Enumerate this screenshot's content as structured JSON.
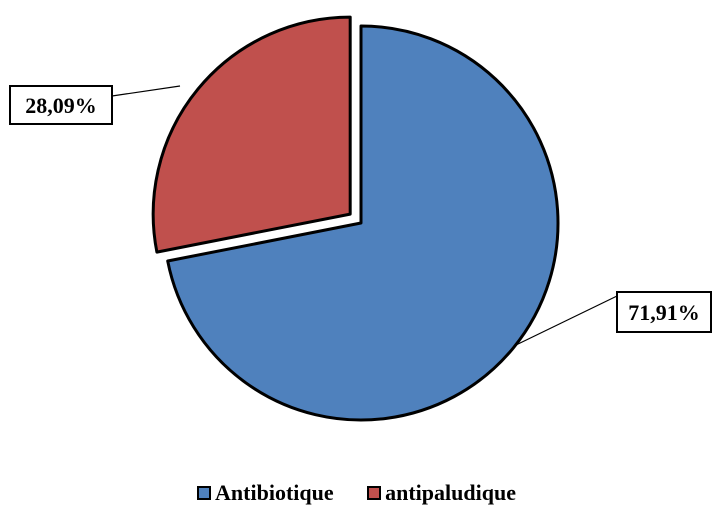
{
  "chart_data": {
    "type": "pie",
    "categories": [
      "Antibiotique",
      "antipaludique"
    ],
    "values": [
      71.91,
      28.09
    ],
    "labels": [
      "71,91%",
      "28,09%"
    ],
    "colors": [
      "#4f81bd",
      "#c0504d"
    ],
    "exploded": "antipaludique",
    "legend_position": "bottom"
  },
  "legend": {
    "items": [
      {
        "label": "Antibiotique",
        "color": "#4f81bd"
      },
      {
        "label": "antipaludique",
        "color": "#c0504d"
      }
    ]
  }
}
